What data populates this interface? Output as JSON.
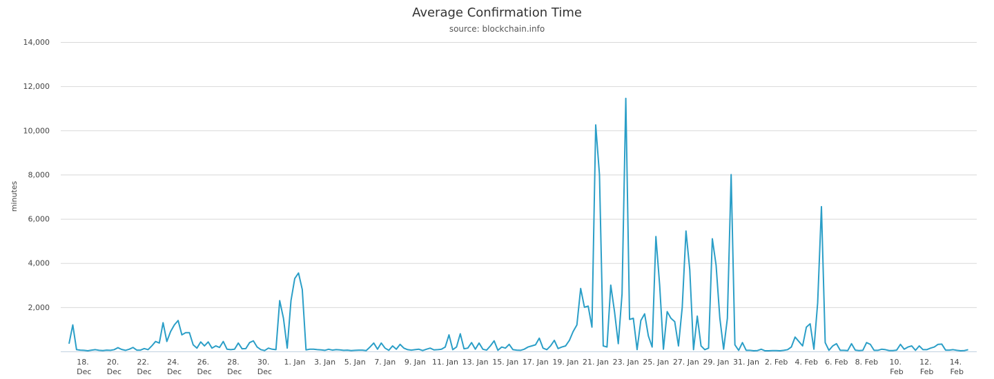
{
  "chart_data": {
    "type": "line",
    "title": "Average Confirmation Time",
    "subtitle": "source: blockchain.info",
    "y_label": "minutes",
    "ylim": [
      0,
      14000
    ],
    "yticks": [
      {
        "value": 2000,
        "label": "2,000"
      },
      {
        "value": 4000,
        "label": "4,000"
      },
      {
        "value": 6000,
        "label": "6,000"
      },
      {
        "value": 8000,
        "label": "8,000"
      },
      {
        "value": 10000,
        "label": "10,000"
      },
      {
        "value": 12000,
        "label": "12,000"
      },
      {
        "value": 14000,
        "label": "14,000"
      }
    ],
    "grid": true,
    "color": "#2a9ec7",
    "categories": [
      null,
      null,
      null,
      null,
      "18. Dec",
      null,
      null,
      null,
      null,
      null,
      null,
      null,
      "20. Dec",
      null,
      null,
      null,
      null,
      null,
      null,
      null,
      "22. Dec",
      null,
      null,
      null,
      null,
      null,
      null,
      null,
      "24. Dec",
      null,
      null,
      null,
      null,
      null,
      null,
      null,
      "26. Dec",
      null,
      null,
      null,
      null,
      null,
      null,
      null,
      "28. Dec",
      null,
      null,
      null,
      null,
      null,
      null,
      null,
      "30. Dec",
      null,
      null,
      null,
      null,
      null,
      null,
      null,
      "1. Jan",
      null,
      null,
      null,
      null,
      null,
      null,
      null,
      "3. Jan",
      null,
      null,
      null,
      null,
      null,
      null,
      null,
      "5. Jan",
      null,
      null,
      null,
      null,
      null,
      null,
      null,
      "7. Jan",
      null,
      null,
      null,
      null,
      null,
      null,
      null,
      "9. Jan",
      null,
      null,
      null,
      null,
      null,
      null,
      null,
      "11. Jan",
      null,
      null,
      null,
      null,
      null,
      null,
      null,
      "13. Jan",
      null,
      null,
      null,
      null,
      null,
      null,
      null,
      "15. Jan",
      null,
      null,
      null,
      null,
      null,
      null,
      null,
      "17. Jan",
      null,
      null,
      null,
      null,
      null,
      null,
      null,
      "19. Jan",
      null,
      null,
      null,
      null,
      null,
      null,
      null,
      "21. Jan",
      null,
      null,
      null,
      null,
      null,
      null,
      null,
      "23. Jan",
      null,
      null,
      null,
      null,
      null,
      null,
      null,
      "25. Jan",
      null,
      null,
      null,
      null,
      null,
      null,
      null,
      "27. Jan",
      null,
      null,
      null,
      null,
      null,
      null,
      null,
      "29. Jan",
      null,
      null,
      null,
      null,
      null,
      null,
      null,
      "31. Jan",
      null,
      null,
      null,
      null,
      null,
      null,
      null,
      "2. Feb",
      null,
      null,
      null,
      null,
      null,
      null,
      null,
      "4. Feb",
      null,
      null,
      null,
      null,
      null,
      null,
      null,
      "6. Feb",
      null,
      null,
      null,
      null,
      null,
      null,
      null,
      "8. Feb",
      null,
      null,
      null,
      null,
      null,
      null,
      null,
      "10. Feb",
      null,
      null,
      null,
      null,
      null,
      null,
      null,
      "12. Feb",
      null,
      null,
      null,
      null,
      null,
      null,
      null,
      "14. Feb",
      null,
      null,
      null
    ],
    "values": [
      350,
      1200,
      80,
      60,
      50,
      30,
      60,
      80,
      50,
      40,
      60,
      50,
      80,
      170,
      90,
      50,
      100,
      180,
      60,
      60,
      130,
      80,
      250,
      450,
      380,
      1300,
      450,
      900,
      1200,
      1400,
      750,
      850,
      850,
      300,
      150,
      430,
      250,
      430,
      150,
      250,
      180,
      450,
      100,
      80,
      100,
      380,
      120,
      130,
      400,
      480,
      200,
      80,
      40,
      150,
      100,
      80,
      2300,
      1500,
      150,
      2300,
      3300,
      3550,
      2800,
      70,
      100,
      100,
      80,
      70,
      50,
      100,
      60,
      80,
      70,
      50,
      60,
      40,
      50,
      60,
      60,
      40,
      200,
      380,
      100,
      380,
      150,
      50,
      250,
      100,
      320,
      150,
      80,
      60,
      80,
      100,
      40,
      100,
      150,
      70,
      80,
      100,
      200,
      750,
      80,
      200,
      800,
      120,
      150,
      400,
      100,
      380,
      100,
      60,
      250,
      480,
      50,
      200,
      150,
      320,
      80,
      60,
      50,
      100,
      200,
      250,
      300,
      600,
      150,
      80,
      250,
      500,
      130,
      200,
      250,
      500,
      900,
      1200,
      2850,
      2000,
      2050,
      1100,
      10250,
      8000,
      250,
      200,
      3000,
      1800,
      350,
      2600,
      11450,
      1450,
      1500,
      80,
      1400,
      1700,
      700,
      200,
      5200,
      3000,
      100,
      1800,
      1500,
      1350,
      250,
      2000,
      5450,
      3700,
      80,
      1600,
      250,
      80,
      150,
      5100,
      3900,
      1500,
      100,
      1500,
      8000,
      300,
      50,
      400,
      50,
      50,
      30,
      40,
      100,
      30,
      30,
      40,
      40,
      30,
      50,
      80,
      200,
      650,
      450,
      250,
      1100,
      1250,
      100,
      2200,
      6550,
      400,
      50,
      250,
      350,
      50,
      50,
      40,
      350,
      60,
      40,
      50,
      400,
      320,
      50,
      50,
      100,
      80,
      40,
      40,
      60,
      320,
      100,
      200,
      250,
      50,
      250,
      80,
      80,
      150,
      200,
      320,
      330,
      60,
      60,
      80,
      50,
      30,
      40,
      80
    ]
  }
}
